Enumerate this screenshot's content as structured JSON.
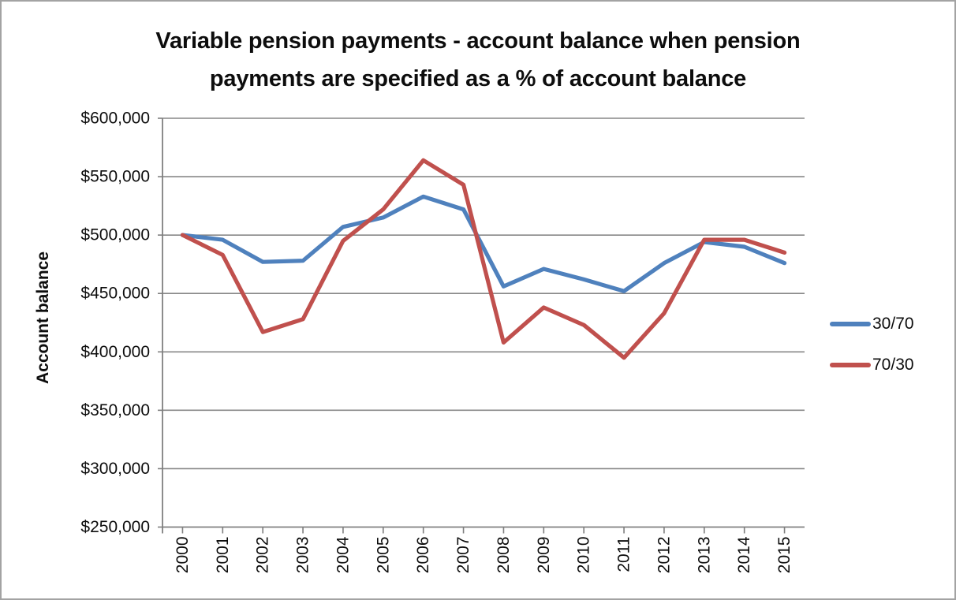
{
  "figure": {
    "background": "#ffffff",
    "border_color": "#a3a3a3"
  },
  "chart_data": {
    "type": "line",
    "title": "Variable pension payments - account balance when pension payments are specified as a % of account balance",
    "title_lines": [
      "Variable pension payments - account balance when pension",
      "payments are specified as a % of account balance"
    ],
    "ylabel": "Account balance",
    "xlabel": "",
    "categories": [
      "2000",
      "2001",
      "2002",
      "2003",
      "2004",
      "2005",
      "2006",
      "2007",
      "2008",
      "2009",
      "2010",
      "2011",
      "2012",
      "2013",
      "2014",
      "2015"
    ],
    "series": [
      {
        "name": "30/70",
        "color": "#4F81BD",
        "values": [
          500000,
          496000,
          477000,
          478000,
          507000,
          515000,
          533000,
          522000,
          456000,
          471000,
          462000,
          452000,
          476000,
          494000,
          490000,
          476000
        ]
      },
      {
        "name": "70/30",
        "color": "#C0504D",
        "values": [
          500000,
          483000,
          417000,
          428000,
          495000,
          522000,
          564000,
          543000,
          408000,
          438000,
          423000,
          395000,
          433000,
          496000,
          496000,
          485000
        ]
      }
    ],
    "ylim": [
      250000,
      600000
    ],
    "ytick_step": 50000,
    "yticks": [
      {
        "value": 600000,
        "label": "$600,000"
      },
      {
        "value": 550000,
        "label": "$550,000"
      },
      {
        "value": 500000,
        "label": "$500,000"
      },
      {
        "value": 450000,
        "label": "$450,000"
      },
      {
        "value": 400000,
        "label": "$400,000"
      },
      {
        "value": 350000,
        "label": "$350,000"
      },
      {
        "value": 300000,
        "label": "$300,000"
      },
      {
        "value": 250000,
        "label": "$250,000"
      }
    ],
    "grid": "horizontal",
    "grid_color": "#878787",
    "axis_color": "#7f7f7f",
    "text_color": "#0d0d0d",
    "legend_position": "right"
  }
}
